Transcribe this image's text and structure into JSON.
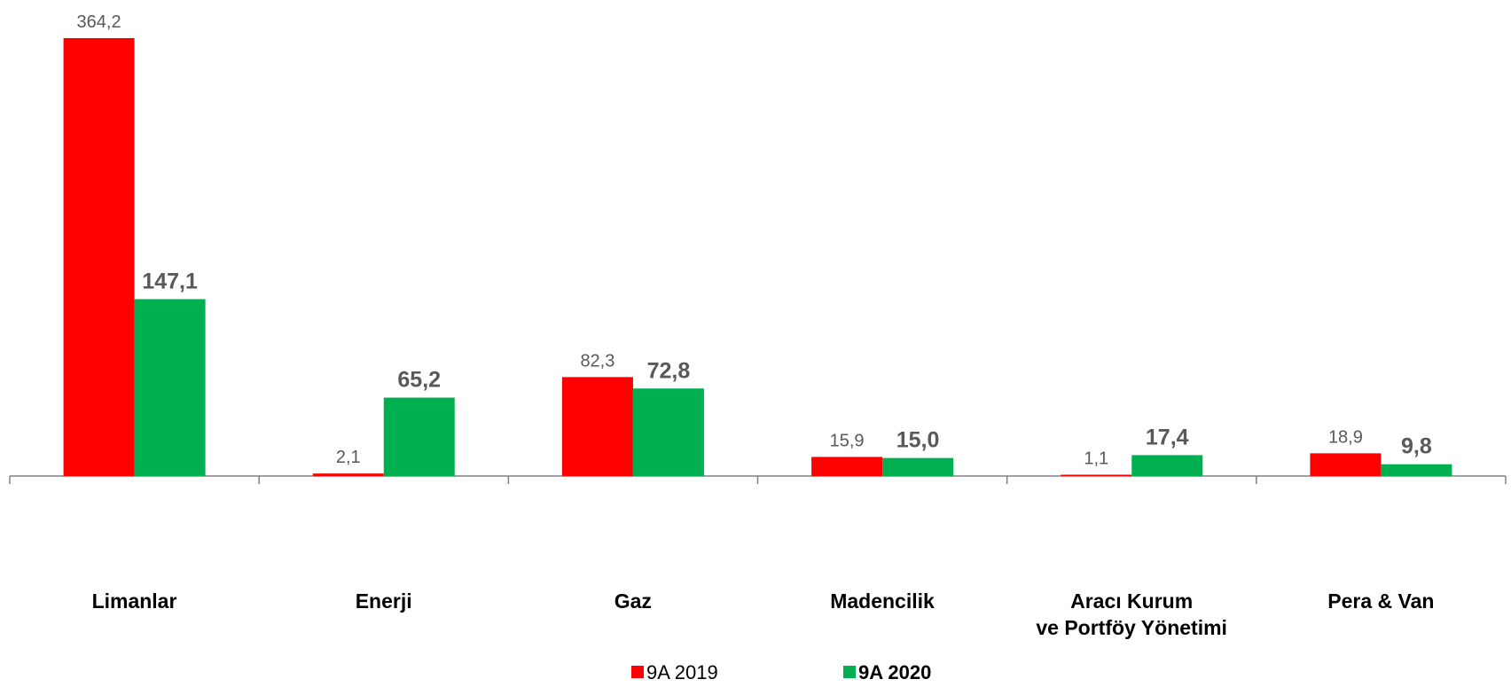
{
  "chart_data": {
    "type": "bar",
    "categories": [
      "Limanlar",
      "Enerji",
      "Gaz",
      "Madencilik",
      "Aracı Kurum\nve Portföy Yönetimi",
      "Pera & Van"
    ],
    "series": [
      {
        "name": "9A 2019",
        "color": "#ff0000",
        "values": [
          364.2,
          2.1,
          82.3,
          15.9,
          1.1,
          18.9
        ],
        "value_labels": [
          "364,2",
          "2,1",
          "82,3",
          "15,9",
          "1,1",
          "18,9"
        ]
      },
      {
        "name": "9A 2020",
        "color": "#00b050",
        "values": [
          147.1,
          65.2,
          72.8,
          15.0,
          17.4,
          9.8
        ],
        "value_labels": [
          "147,1",
          "65,2",
          "72,8",
          "15,0",
          "17,4",
          "9,8"
        ]
      }
    ]
  }
}
